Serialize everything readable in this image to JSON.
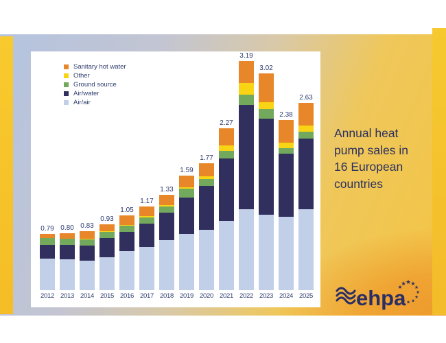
{
  "slide": {
    "title": {
      "lines": [
        "Annual heat",
        "pump sales in",
        "16 European",
        "countries"
      ],
      "full_text": "Annual heat pump sales in 16 European countries"
    }
  },
  "logo": {
    "text": "ehpa",
    "wave_icon": "waves-icon",
    "stars_icon": "eu-stars-icon",
    "color": "#2b2e64"
  },
  "colors": {
    "sanitary_hot_water": "#e8872a",
    "other": "#f8d414",
    "ground_source": "#73a95c",
    "air_water": "#312f5e",
    "air_air": "#c2cfe8",
    "label_navy": "#2c3a6e",
    "title_navy": "#2b3160",
    "slide_gold": "#f4c443",
    "slide_orange": "#ee9a2b",
    "slide_blue": "#b7c4dd",
    "card_white": "#ffffff"
  },
  "chart_data": {
    "type": "bar",
    "stacked": true,
    "legend_position": "top-left",
    "grid": false,
    "ylim": [
      0,
      3.4
    ],
    "xlabel": "",
    "ylabel": "",
    "categories": [
      "2012",
      "2013",
      "2014",
      "2015",
      "2016",
      "2017",
      "2018",
      "2019",
      "2020",
      "2021",
      "2022",
      "2023",
      "2024",
      "2025"
    ],
    "totals": [
      "0.79",
      "0.80",
      "0.83",
      "0.93",
      "1.05",
      "1.17",
      "1.33",
      "1.59",
      "1.77",
      "2.27",
      "3.19",
      "3.02",
      "2.38",
      "2.63"
    ],
    "series": [
      {
        "name": "Air/air",
        "color": "#c2cfe8",
        "values": [
          0.44,
          0.43,
          0.41,
          0.46,
          0.55,
          0.6,
          0.7,
          0.78,
          0.84,
          0.97,
          1.13,
          1.05,
          1.02,
          1.13
        ]
      },
      {
        "name": "Air/water",
        "color": "#312f5e",
        "values": [
          0.19,
          0.2,
          0.21,
          0.27,
          0.27,
          0.33,
          0.38,
          0.51,
          0.61,
          0.87,
          1.45,
          1.34,
          0.88,
          0.99
        ]
      },
      {
        "name": "Ground source",
        "color": "#73a95c",
        "values": [
          0.1,
          0.09,
          0.09,
          0.09,
          0.09,
          0.09,
          0.09,
          0.12,
          0.1,
          0.11,
          0.14,
          0.13,
          0.08,
          0.1
        ]
      },
      {
        "name": "Other",
        "color": "#f8d414",
        "values": [
          0.0,
          0.0,
          0.01,
          0.01,
          0.01,
          0.02,
          0.02,
          0.02,
          0.04,
          0.08,
          0.16,
          0.1,
          0.08,
          0.09
        ]
      },
      {
        "name": "Sanitary hot water",
        "color": "#e8872a",
        "values": [
          0.06,
          0.08,
          0.11,
          0.1,
          0.13,
          0.13,
          0.14,
          0.16,
          0.18,
          0.24,
          0.31,
          0.4,
          0.32,
          0.32
        ]
      }
    ]
  }
}
